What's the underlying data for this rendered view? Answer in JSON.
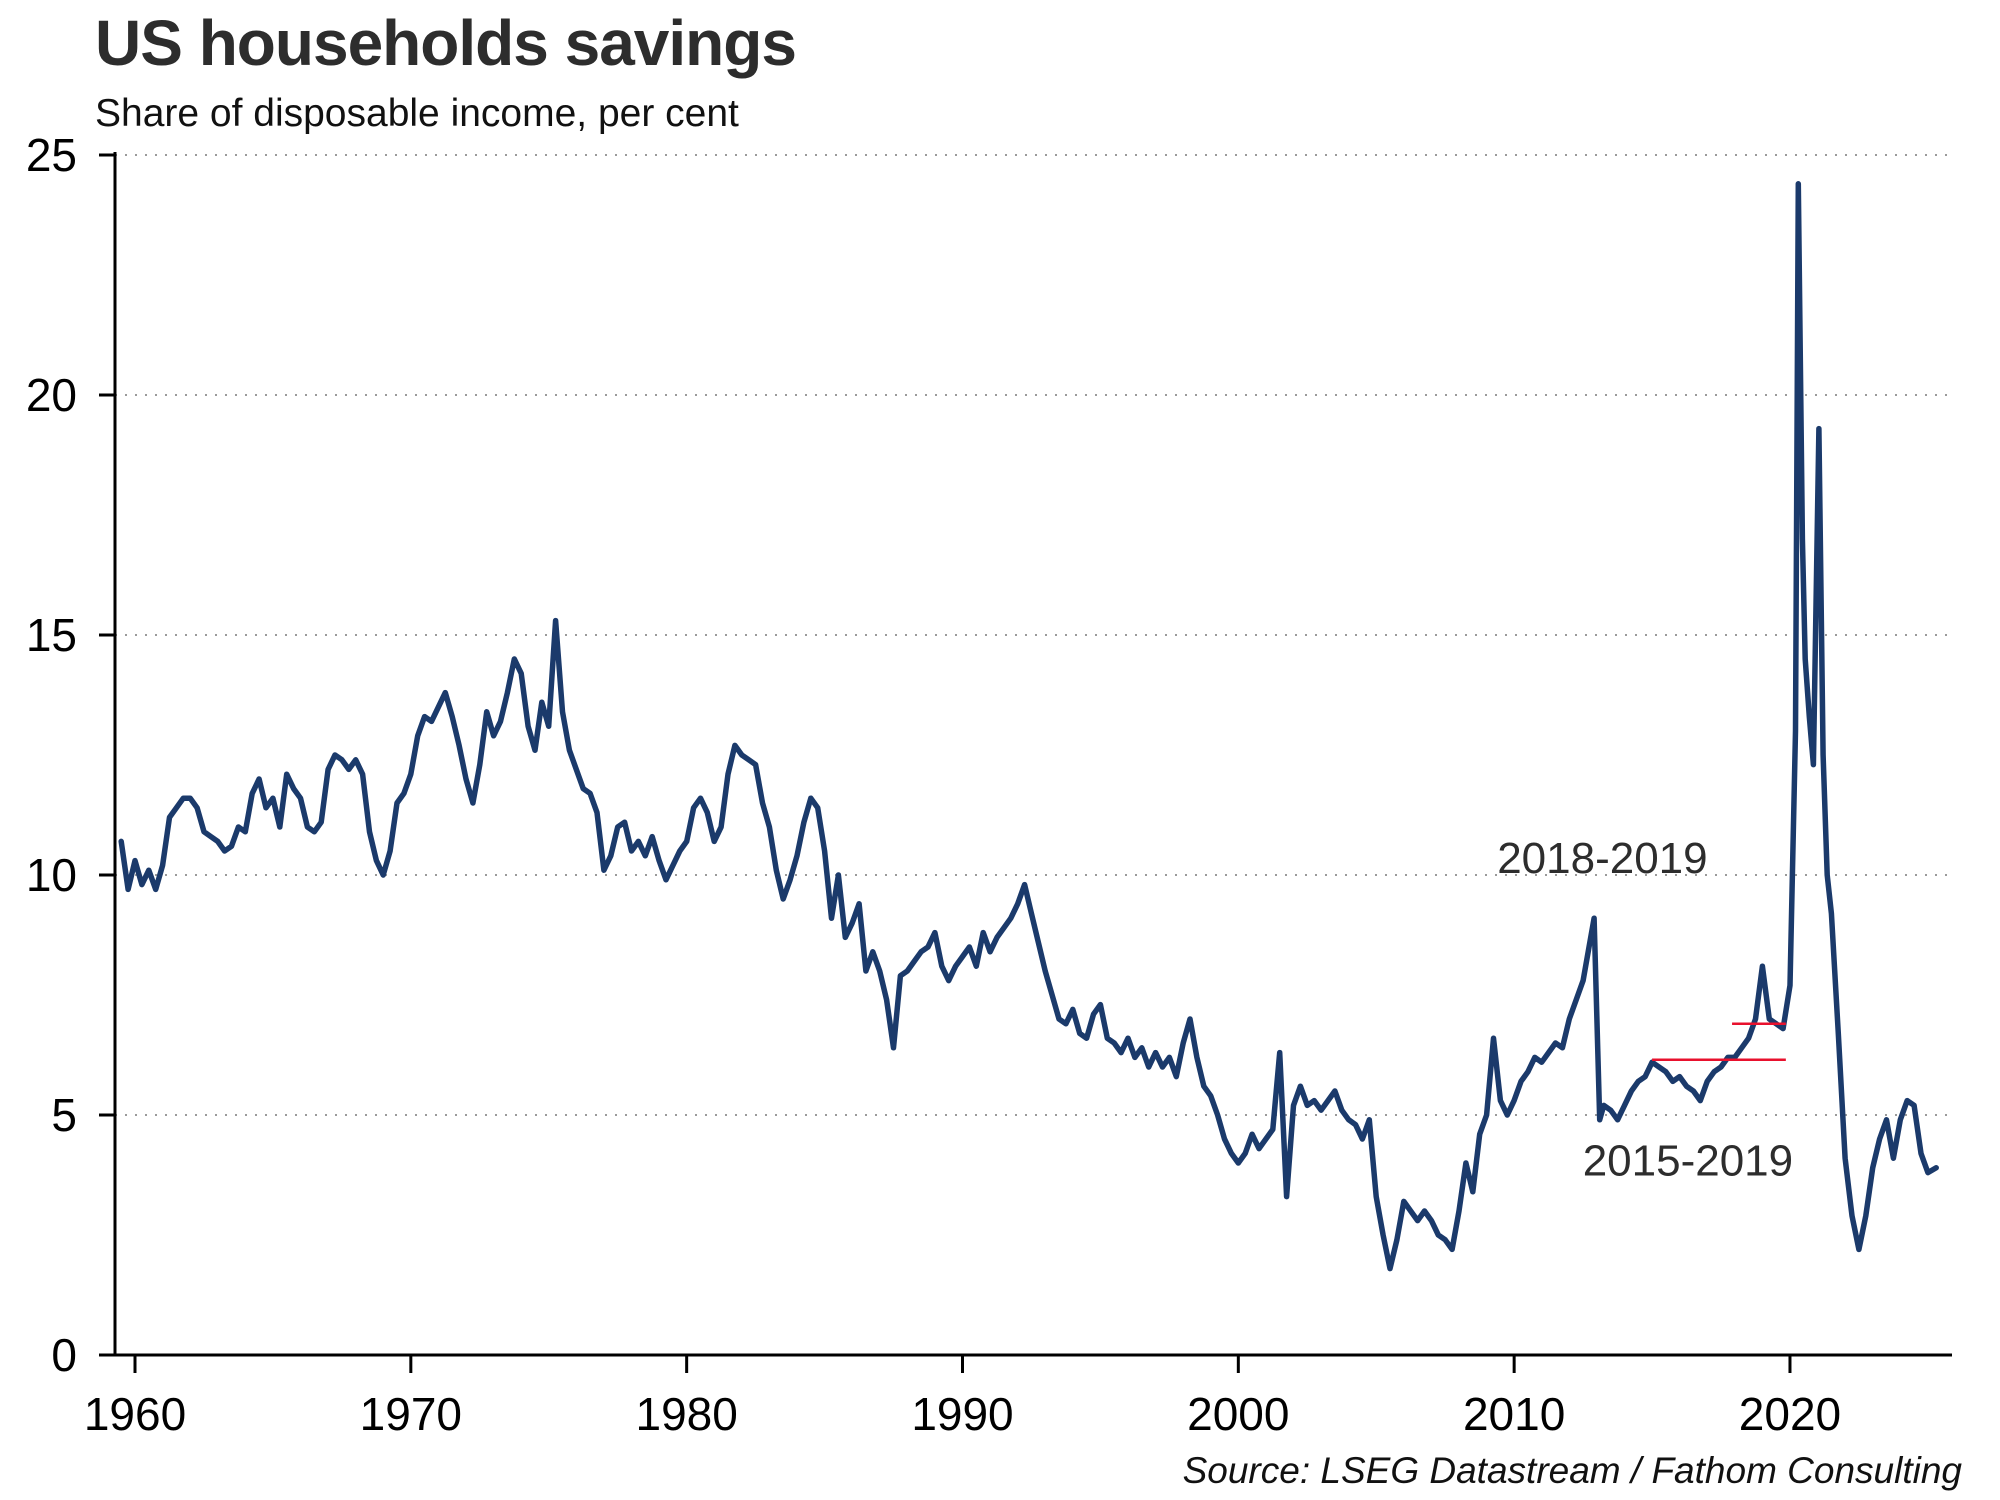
{
  "page": {
    "title": "US households savings",
    "subtitle": "Share of disposable income, per cent",
    "source": "Source: LSEG Datastream / Fathom Consulting"
  },
  "chart_data": {
    "type": "line",
    "title": "US households savings",
    "subtitle": "Share of disposable income, per cent",
    "source": "Source: LSEG Datastream / Fathom Consulting",
    "xlabel": "",
    "ylabel": "",
    "xlim": [
      1959,
      2026
    ],
    "ylim": [
      0,
      25
    ],
    "xticks": [
      1960,
      1970,
      1980,
      1990,
      2000,
      2010,
      2020
    ],
    "yticks": [
      0,
      5,
      10,
      15,
      20,
      25
    ],
    "grid": {
      "horizontal": true,
      "vertical": false,
      "style": "dotted"
    },
    "legend": "none",
    "colors": {
      "line": "#1b3a6b",
      "annotation": "#e8112d",
      "axis": "#000000",
      "grid": "#9a9a9a"
    },
    "series": [
      {
        "name": "US household saving rate, share of disposable income (per cent)",
        "points": [
          [
            1959.5,
            10.7
          ],
          [
            1959.75,
            9.7
          ],
          [
            1960,
            10.3
          ],
          [
            1960.25,
            9.8
          ],
          [
            1960.5,
            10.1
          ],
          [
            1960.75,
            9.7
          ],
          [
            1961,
            10.2
          ],
          [
            1961.25,
            11.2
          ],
          [
            1961.5,
            11.4
          ],
          [
            1961.75,
            11.6
          ],
          [
            1962,
            11.6
          ],
          [
            1962.25,
            11.4
          ],
          [
            1962.5,
            10.9
          ],
          [
            1962.75,
            10.8
          ],
          [
            1963,
            10.7
          ],
          [
            1963.25,
            10.5
          ],
          [
            1963.5,
            10.6
          ],
          [
            1963.75,
            11.0
          ],
          [
            1964,
            10.9
          ],
          [
            1964.25,
            11.7
          ],
          [
            1964.5,
            12.0
          ],
          [
            1964.75,
            11.4
          ],
          [
            1965,
            11.6
          ],
          [
            1965.25,
            11.0
          ],
          [
            1965.5,
            12.1
          ],
          [
            1965.75,
            11.8
          ],
          [
            1966,
            11.6
          ],
          [
            1966.25,
            11.0
          ],
          [
            1966.5,
            10.9
          ],
          [
            1966.75,
            11.1
          ],
          [
            1967,
            12.2
          ],
          [
            1967.25,
            12.5
          ],
          [
            1967.5,
            12.4
          ],
          [
            1967.75,
            12.2
          ],
          [
            1968,
            12.4
          ],
          [
            1968.25,
            12.1
          ],
          [
            1968.5,
            10.9
          ],
          [
            1968.75,
            10.3
          ],
          [
            1969,
            10.0
          ],
          [
            1969.25,
            10.5
          ],
          [
            1969.5,
            11.5
          ],
          [
            1969.75,
            11.7
          ],
          [
            1970,
            12.1
          ],
          [
            1970.25,
            12.9
          ],
          [
            1970.5,
            13.3
          ],
          [
            1970.75,
            13.2
          ],
          [
            1971,
            13.5
          ],
          [
            1971.25,
            13.8
          ],
          [
            1971.5,
            13.3
          ],
          [
            1971.75,
            12.7
          ],
          [
            1972,
            12.0
          ],
          [
            1972.25,
            11.5
          ],
          [
            1972.5,
            12.3
          ],
          [
            1972.75,
            13.4
          ],
          [
            1973,
            12.9
          ],
          [
            1973.25,
            13.2
          ],
          [
            1973.5,
            13.8
          ],
          [
            1973.75,
            14.5
          ],
          [
            1974,
            14.2
          ],
          [
            1974.25,
            13.1
          ],
          [
            1974.5,
            12.6
          ],
          [
            1974.75,
            13.6
          ],
          [
            1975,
            13.1
          ],
          [
            1975.25,
            15.3
          ],
          [
            1975.5,
            13.4
          ],
          [
            1975.75,
            12.6
          ],
          [
            1976,
            12.2
          ],
          [
            1976.25,
            11.8
          ],
          [
            1976.5,
            11.7
          ],
          [
            1976.75,
            11.3
          ],
          [
            1977,
            10.1
          ],
          [
            1977.25,
            10.4
          ],
          [
            1977.5,
            11.0
          ],
          [
            1977.75,
            11.1
          ],
          [
            1978,
            10.5
          ],
          [
            1978.25,
            10.7
          ],
          [
            1978.5,
            10.4
          ],
          [
            1978.75,
            10.8
          ],
          [
            1979,
            10.3
          ],
          [
            1979.25,
            9.9
          ],
          [
            1979.5,
            10.2
          ],
          [
            1979.75,
            10.5
          ],
          [
            1980,
            10.7
          ],
          [
            1980.25,
            11.4
          ],
          [
            1980.5,
            11.6
          ],
          [
            1980.75,
            11.3
          ],
          [
            1981,
            10.7
          ],
          [
            1981.25,
            11.0
          ],
          [
            1981.5,
            12.1
          ],
          [
            1981.75,
            12.7
          ],
          [
            1982,
            12.5
          ],
          [
            1982.25,
            12.4
          ],
          [
            1982.5,
            12.3
          ],
          [
            1982.75,
            11.5
          ],
          [
            1983,
            11.0
          ],
          [
            1983.25,
            10.1
          ],
          [
            1983.5,
            9.5
          ],
          [
            1983.75,
            9.9
          ],
          [
            1984,
            10.4
          ],
          [
            1984.25,
            11.1
          ],
          [
            1984.5,
            11.6
          ],
          [
            1984.75,
            11.4
          ],
          [
            1985,
            10.5
          ],
          [
            1985.25,
            9.1
          ],
          [
            1985.5,
            10.0
          ],
          [
            1985.75,
            8.7
          ],
          [
            1986,
            9.0
          ],
          [
            1986.25,
            9.4
          ],
          [
            1986.5,
            8.0
          ],
          [
            1986.75,
            8.4
          ],
          [
            1987,
            8.0
          ],
          [
            1987.25,
            7.4
          ],
          [
            1987.5,
            6.4
          ],
          [
            1987.75,
            7.9
          ],
          [
            1988,
            8.0
          ],
          [
            1988.25,
            8.2
          ],
          [
            1988.5,
            8.4
          ],
          [
            1988.75,
            8.5
          ],
          [
            1989,
            8.8
          ],
          [
            1989.25,
            8.1
          ],
          [
            1989.5,
            7.8
          ],
          [
            1989.75,
            8.1
          ],
          [
            1990,
            8.3
          ],
          [
            1990.25,
            8.5
          ],
          [
            1990.5,
            8.1
          ],
          [
            1990.75,
            8.8
          ],
          [
            1991,
            8.4
          ],
          [
            1991.25,
            8.7
          ],
          [
            1991.5,
            8.9
          ],
          [
            1991.75,
            9.1
          ],
          [
            1992,
            9.4
          ],
          [
            1992.25,
            9.8
          ],
          [
            1992.5,
            9.2
          ],
          [
            1992.75,
            8.6
          ],
          [
            1993,
            8.0
          ],
          [
            1993.25,
            7.5
          ],
          [
            1993.5,
            7.0
          ],
          [
            1993.75,
            6.9
          ],
          [
            1994,
            7.2
          ],
          [
            1994.25,
            6.7
          ],
          [
            1994.5,
            6.6
          ],
          [
            1994.75,
            7.1
          ],
          [
            1995,
            7.3
          ],
          [
            1995.25,
            6.6
          ],
          [
            1995.5,
            6.5
          ],
          [
            1995.75,
            6.3
          ],
          [
            1996,
            6.6
          ],
          [
            1996.25,
            6.2
          ],
          [
            1996.5,
            6.4
          ],
          [
            1996.75,
            6.0
          ],
          [
            1997,
            6.3
          ],
          [
            1997.25,
            6.0
          ],
          [
            1997.5,
            6.2
          ],
          [
            1997.75,
            5.8
          ],
          [
            1998,
            6.5
          ],
          [
            1998.25,
            7.0
          ],
          [
            1998.5,
            6.2
          ],
          [
            1998.75,
            5.6
          ],
          [
            1999,
            5.4
          ],
          [
            1999.25,
            5.0
          ],
          [
            1999.5,
            4.5
          ],
          [
            1999.75,
            4.2
          ],
          [
            2000,
            4.0
          ],
          [
            2000.25,
            4.2
          ],
          [
            2000.5,
            4.6
          ],
          [
            2000.75,
            4.3
          ],
          [
            2001,
            4.5
          ],
          [
            2001.25,
            4.7
          ],
          [
            2001.5,
            6.3
          ],
          [
            2001.75,
            3.3
          ],
          [
            2002,
            5.2
          ],
          [
            2002.25,
            5.6
          ],
          [
            2002.5,
            5.2
          ],
          [
            2002.75,
            5.3
          ],
          [
            2003,
            5.1
          ],
          [
            2003.25,
            5.3
          ],
          [
            2003.5,
            5.5
          ],
          [
            2003.75,
            5.1
          ],
          [
            2004,
            4.9
          ],
          [
            2004.25,
            4.8
          ],
          [
            2004.5,
            4.5
          ],
          [
            2004.75,
            4.9
          ],
          [
            2005,
            3.3
          ],
          [
            2005.25,
            2.5
          ],
          [
            2005.5,
            1.8
          ],
          [
            2005.75,
            2.4
          ],
          [
            2006,
            3.2
          ],
          [
            2006.25,
            3.0
          ],
          [
            2006.5,
            2.8
          ],
          [
            2006.75,
            3.0
          ],
          [
            2007,
            2.8
          ],
          [
            2007.25,
            2.5
          ],
          [
            2007.5,
            2.4
          ],
          [
            2007.75,
            2.2
          ],
          [
            2008,
            3.0
          ],
          [
            2008.25,
            4.0
          ],
          [
            2008.5,
            3.4
          ],
          [
            2008.75,
            4.6
          ],
          [
            2009,
            5.0
          ],
          [
            2009.25,
            6.6
          ],
          [
            2009.5,
            5.3
          ],
          [
            2009.75,
            5.0
          ],
          [
            2010,
            5.3
          ],
          [
            2010.25,
            5.7
          ],
          [
            2010.5,
            5.9
          ],
          [
            2010.75,
            6.2
          ],
          [
            2011,
            6.1
          ],
          [
            2011.25,
            6.3
          ],
          [
            2011.5,
            6.5
          ],
          [
            2011.75,
            6.4
          ],
          [
            2012,
            7.0
          ],
          [
            2012.25,
            7.4
          ],
          [
            2012.5,
            7.8
          ],
          [
            2012.9,
            9.1
          ],
          [
            2013.1,
            4.9
          ],
          [
            2013.25,
            5.2
          ],
          [
            2013.5,
            5.1
          ],
          [
            2013.75,
            4.9
          ],
          [
            2014,
            5.2
          ],
          [
            2014.25,
            5.5
          ],
          [
            2014.5,
            5.7
          ],
          [
            2014.75,
            5.8
          ],
          [
            2015,
            6.1
          ],
          [
            2015.25,
            6.0
          ],
          [
            2015.5,
            5.9
          ],
          [
            2015.75,
            5.7
          ],
          [
            2016,
            5.8
          ],
          [
            2016.25,
            5.6
          ],
          [
            2016.5,
            5.5
          ],
          [
            2016.75,
            5.3
          ],
          [
            2017,
            5.7
          ],
          [
            2017.25,
            5.9
          ],
          [
            2017.5,
            6.0
          ],
          [
            2017.75,
            6.2
          ],
          [
            2018,
            6.2
          ],
          [
            2018.25,
            6.4
          ],
          [
            2018.5,
            6.6
          ],
          [
            2018.75,
            7.0
          ],
          [
            2019,
            8.1
          ],
          [
            2019.25,
            7.0
          ],
          [
            2019.5,
            6.9
          ],
          [
            2019.75,
            6.8
          ],
          [
            2020,
            7.7
          ],
          [
            2020.2,
            13.0
          ],
          [
            2020.3,
            24.4
          ],
          [
            2020.45,
            17.0
          ],
          [
            2020.55,
            14.5
          ],
          [
            2020.7,
            13.3
          ],
          [
            2020.85,
            12.3
          ],
          [
            2021.05,
            19.3
          ],
          [
            2021.2,
            12.5
          ],
          [
            2021.35,
            10.0
          ],
          [
            2021.5,
            9.2
          ],
          [
            2021.75,
            6.7
          ],
          [
            2022,
            4.1
          ],
          [
            2022.25,
            2.9
          ],
          [
            2022.5,
            2.2
          ],
          [
            2022.75,
            2.9
          ],
          [
            2023,
            3.9
          ],
          [
            2023.25,
            4.5
          ],
          [
            2023.5,
            4.9
          ],
          [
            2023.75,
            4.1
          ],
          [
            2024,
            4.9
          ],
          [
            2024.25,
            5.3
          ],
          [
            2024.5,
            5.2
          ],
          [
            2024.75,
            4.2
          ],
          [
            2025,
            3.8
          ],
          [
            2025.3,
            3.9
          ]
        ]
      }
    ],
    "annotations": [
      {
        "label": "2018-2019",
        "label_x": 2013.2,
        "label_y": 10.35,
        "line_y": 6.9,
        "line_x1": 2017.9,
        "line_x2": 2019.85
      },
      {
        "label": "2015-2019",
        "label_x": 2016.3,
        "label_y": 4.05,
        "line_y": 6.15,
        "line_x1": 2015.0,
        "line_x2": 2019.85
      }
    ]
  }
}
